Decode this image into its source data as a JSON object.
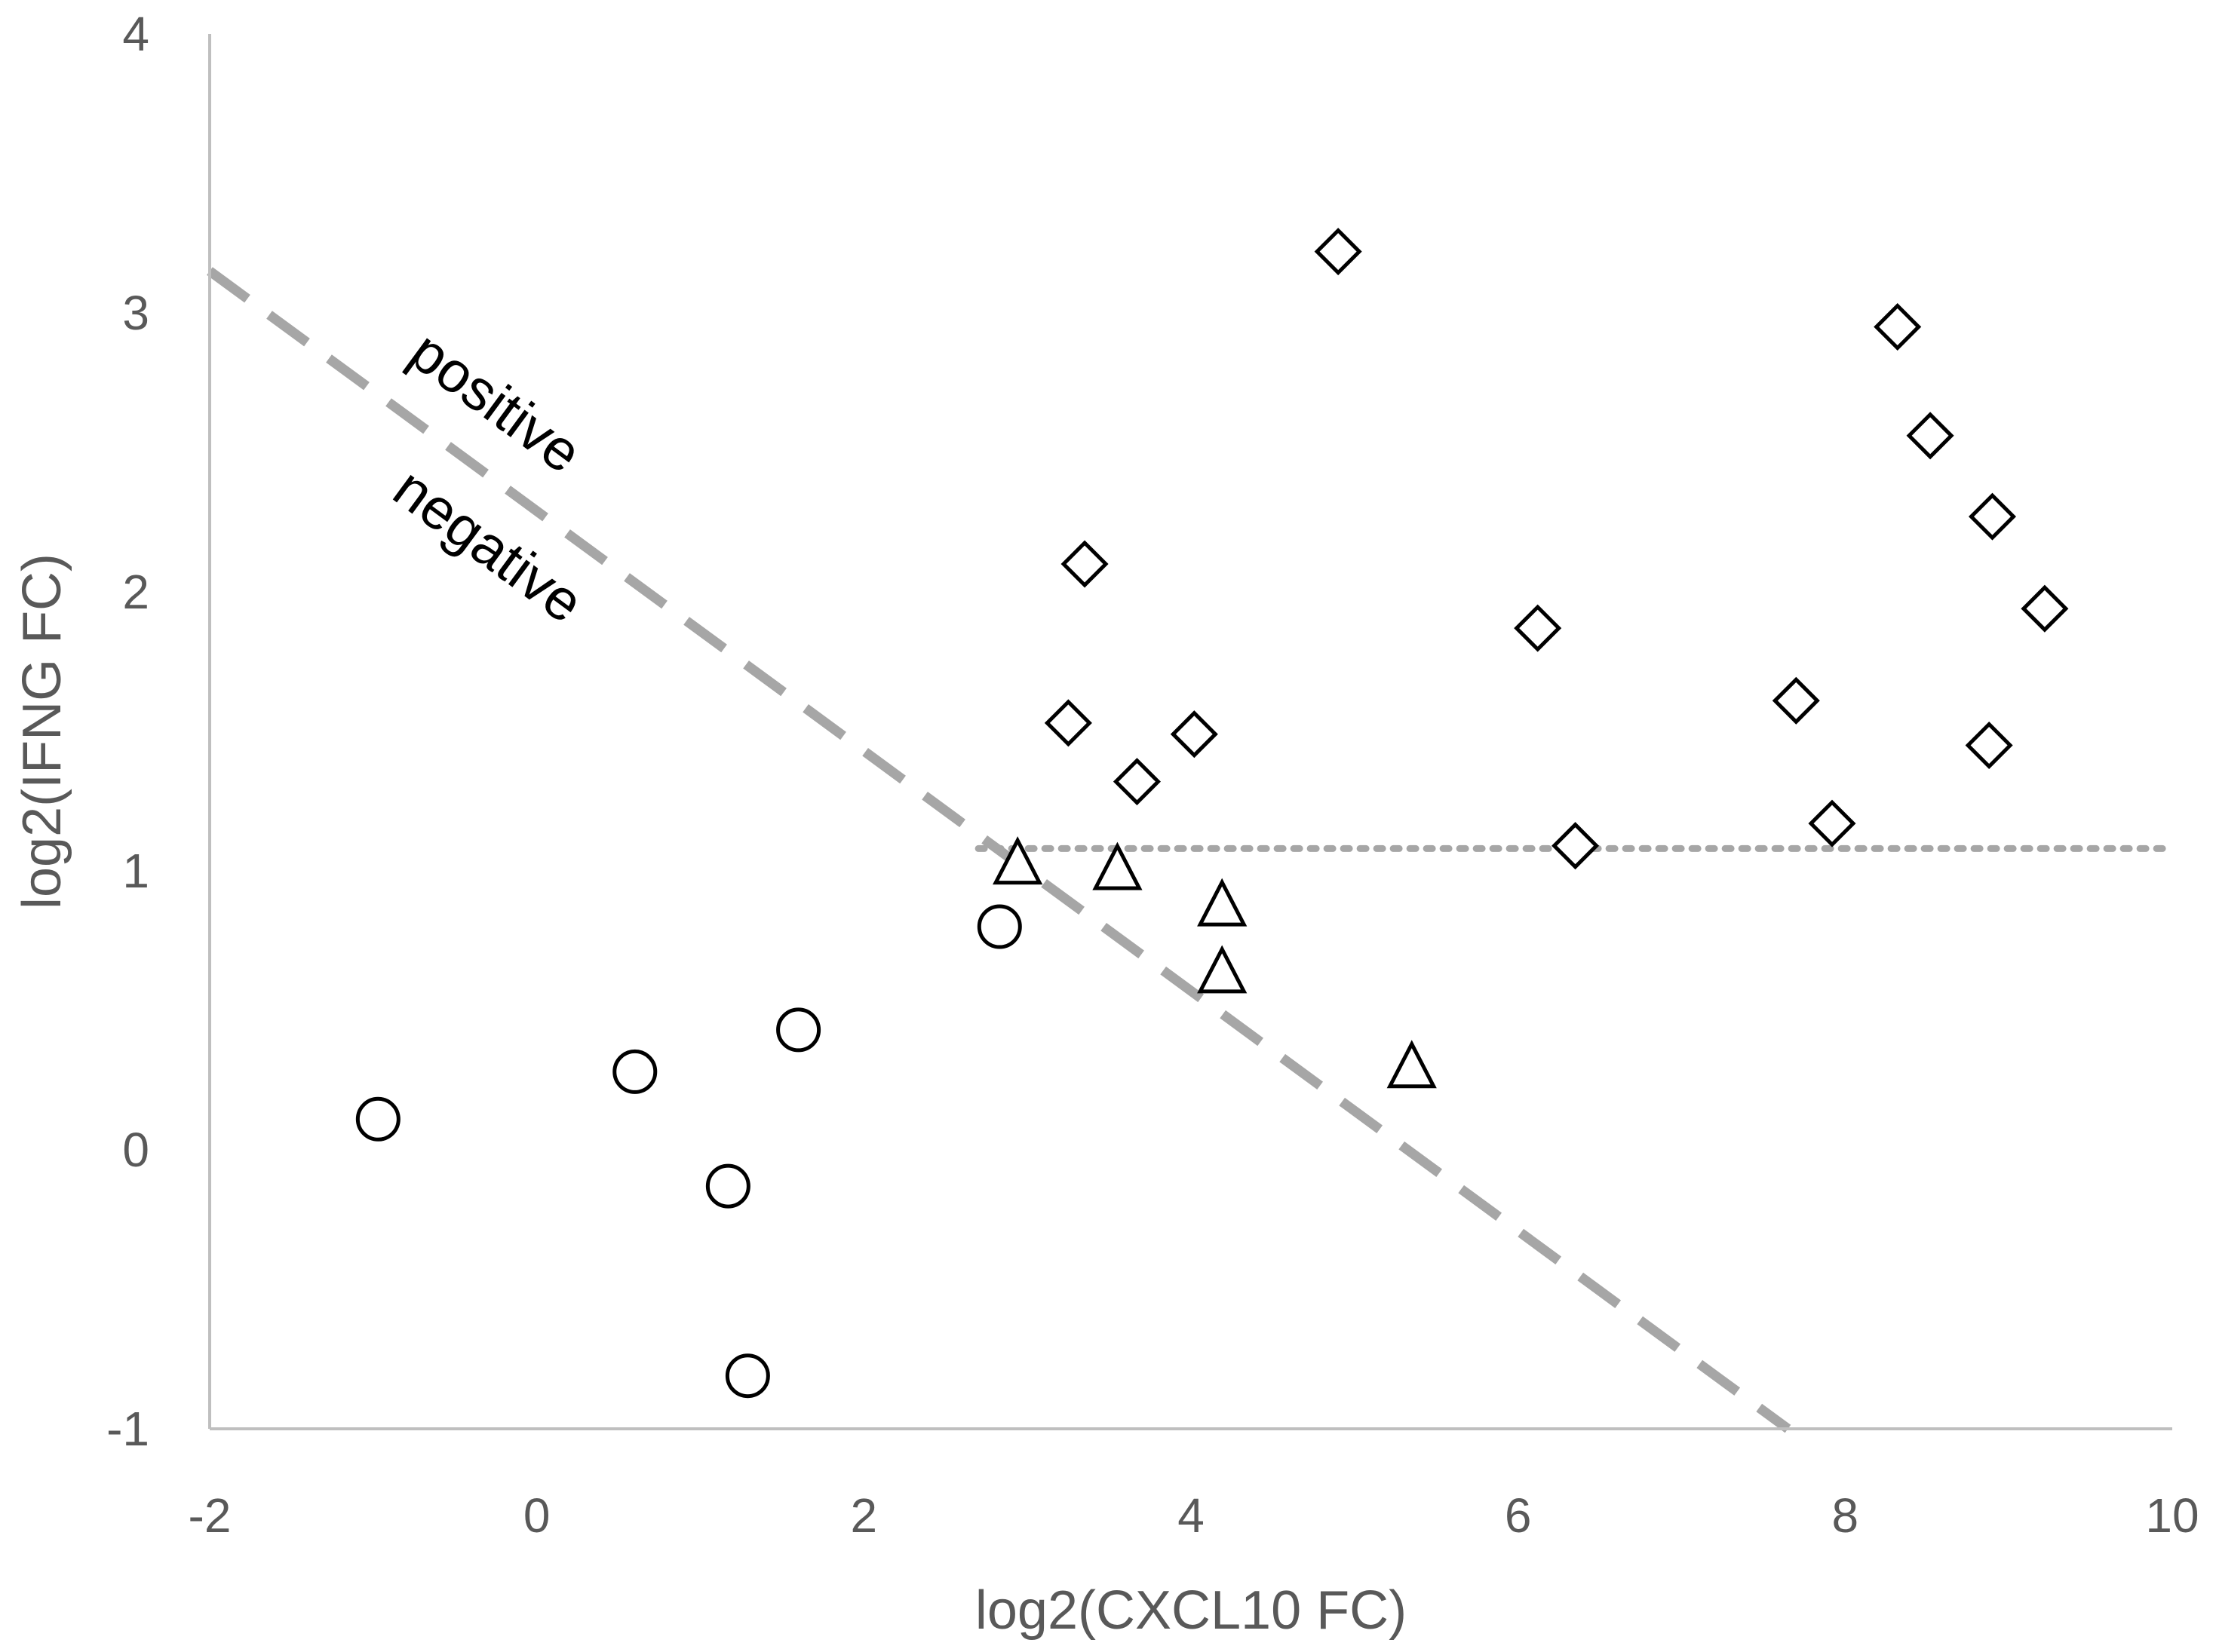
{
  "chart_data": {
    "type": "scatter",
    "xlabel": "log2(CXCL10 FC)",
    "ylabel": "log2(IFNG FC)",
    "xlim": [
      -2,
      10
    ],
    "ylim": [
      -1,
      4
    ],
    "xticks": [
      -2,
      0,
      2,
      4,
      6,
      8,
      10
    ],
    "yticks": [
      -1,
      0,
      1,
      2,
      3,
      4
    ],
    "grid": false,
    "legend": "none",
    "series": [
      {
        "marker": "circle",
        "points": [
          [
            -0.97,
            0.11
          ],
          [
            0.6,
            0.28
          ],
          [
            1.17,
            -0.13
          ],
          [
            1.6,
            0.43
          ],
          [
            1.29,
            -0.81
          ],
          [
            2.83,
            0.8
          ]
        ]
      },
      {
        "marker": "triangle",
        "points": [
          [
            2.94,
            1.02
          ],
          [
            3.55,
            1.0
          ],
          [
            4.19,
            0.87
          ],
          [
            4.19,
            0.63
          ],
          [
            5.35,
            0.29
          ]
        ]
      },
      {
        "marker": "diamond",
        "points": [
          [
            4.9,
            3.22
          ],
          [
            3.35,
            2.1
          ],
          [
            3.25,
            1.53
          ],
          [
            3.67,
            1.32
          ],
          [
            4.02,
            1.49
          ],
          [
            6.12,
            1.87
          ],
          [
            6.35,
            1.09
          ],
          [
            8.32,
            2.95
          ],
          [
            8.52,
            2.56
          ],
          [
            8.9,
            2.27
          ],
          [
            9.22,
            1.94
          ],
          [
            7.7,
            1.61
          ],
          [
            7.92,
            1.17
          ],
          [
            8.88,
            1.45
          ]
        ]
      }
    ],
    "reference_lines": [
      {
        "style": "dashed",
        "color": "#a6a6a6",
        "from": [
          -2,
          3.15
        ],
        "to": [
          7.65,
          -1.0
        ]
      },
      {
        "style": "dotted",
        "color": "#a6a6a6",
        "from": [
          2.7,
          1.08
        ],
        "to": [
          10,
          1.08
        ]
      }
    ],
    "annotations": [
      {
        "text": "positive",
        "x": -0.8,
        "y": 2.83
      },
      {
        "text": "negative",
        "x": -0.9,
        "y": 2.34
      }
    ]
  }
}
